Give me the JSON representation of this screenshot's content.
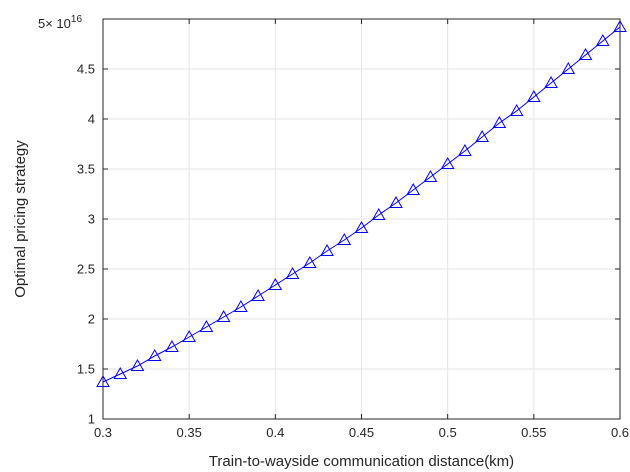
{
  "chart_data": {
    "type": "line",
    "xlabel": "Train-to-wayside communication distance(km)",
    "ylabel": "Optimal pricing strategy",
    "multiplier": {
      "base": "5× 10",
      "exponent": "16"
    },
    "xlim": [
      0.3,
      0.6
    ],
    "ylim": [
      1,
      5
    ],
    "xticks": [
      "0.3",
      "0.35",
      "0.4",
      "0.45",
      "0.5",
      "0.55",
      "0.6"
    ],
    "yticks": [
      "1",
      "1.5",
      "2",
      "2.5",
      "3",
      "3.5",
      "4",
      "4.5",
      ""
    ],
    "grid": true,
    "series": [
      {
        "color": "#0000ff",
        "marker": "triangle",
        "x": [
          0.3,
          0.31,
          0.32,
          0.33,
          0.34,
          0.35,
          0.36,
          0.37,
          0.38,
          0.39,
          0.4,
          0.41,
          0.42,
          0.43,
          0.44,
          0.45,
          0.46,
          0.47,
          0.48,
          0.49,
          0.5,
          0.51,
          0.52,
          0.53,
          0.54,
          0.55,
          0.56,
          0.57,
          0.58,
          0.59,
          0.6
        ],
        "y": [
          1.37,
          1.45,
          1.53,
          1.63,
          1.72,
          1.82,
          1.92,
          2.02,
          2.12,
          2.23,
          2.34,
          2.45,
          2.56,
          2.68,
          2.79,
          2.91,
          3.04,
          3.16,
          3.29,
          3.42,
          3.55,
          3.68,
          3.82,
          3.96,
          4.08,
          4.22,
          4.36,
          4.5,
          4.64,
          4.78,
          4.92
        ]
      }
    ]
  }
}
